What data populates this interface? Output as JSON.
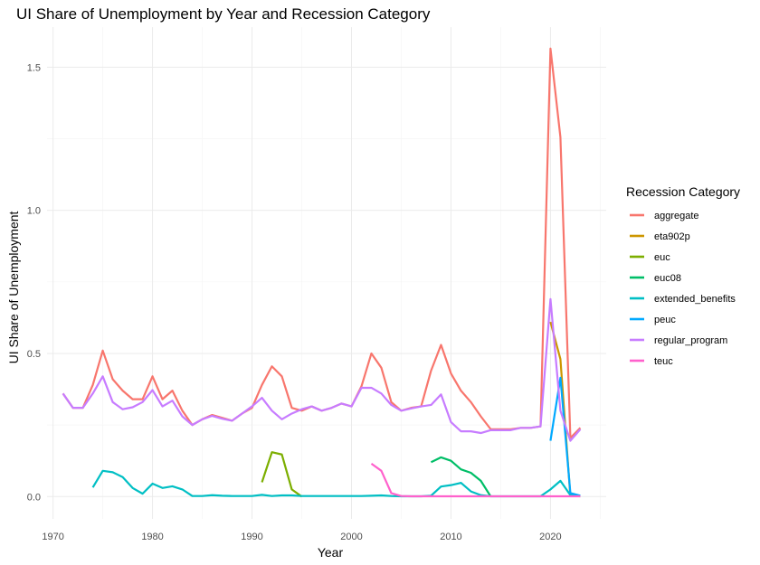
{
  "chart_data": {
    "type": "line",
    "title": "UI Share of Unemployment by Year and Recession Category",
    "xlabel": "Year",
    "ylabel": "UI Share of Unemployment",
    "xlim": [
      1969.4,
      2025.6
    ],
    "ylim": [
      -0.078,
      1.64
    ],
    "x_ticks": [
      1970,
      1980,
      1990,
      2000,
      2010,
      2020
    ],
    "x_minor_ticks": [
      1975,
      1985,
      1995,
      2005,
      2015,
      2025
    ],
    "y_ticks": [
      0.0,
      0.5,
      1.0,
      1.5
    ],
    "y_tick_labels": [
      "0.0",
      "0.5",
      "1.0",
      "1.5"
    ],
    "y_minor_ticks": [
      0.25,
      0.75,
      1.25
    ],
    "grid": true,
    "legend": {
      "title": "Recession Category",
      "position": "right"
    },
    "series": [
      {
        "name": "aggregate",
        "color": "#F8766D",
        "x": [
          1971,
          1972,
          1973,
          1974,
          1975,
          1976,
          1977,
          1978,
          1979,
          1980,
          1981,
          1982,
          1983,
          1984,
          1985,
          1986,
          1987,
          1988,
          1989,
          1990,
          1991,
          1992,
          1993,
          1994,
          1995,
          1996,
          1997,
          1998,
          1999,
          2000,
          2001,
          2002,
          2003,
          2004,
          2005,
          2006,
          2007,
          2008,
          2009,
          2010,
          2011,
          2012,
          2013,
          2014,
          2015,
          2016,
          2017,
          2018,
          2019,
          2020,
          2021,
          2022,
          2023
        ],
        "y": [
          0.36,
          0.31,
          0.31,
          0.39,
          0.51,
          0.41,
          0.37,
          0.34,
          0.34,
          0.42,
          0.34,
          0.37,
          0.3,
          0.25,
          0.27,
          0.285,
          0.275,
          0.265,
          0.29,
          0.31,
          0.39,
          0.455,
          0.42,
          0.31,
          0.3,
          0.315,
          0.3,
          0.31,
          0.325,
          0.315,
          0.385,
          0.5,
          0.45,
          0.33,
          0.3,
          0.31,
          0.315,
          0.44,
          0.53,
          0.43,
          0.37,
          0.33,
          0.28,
          0.235,
          0.235,
          0.235,
          0.24,
          0.24,
          0.245,
          1.565,
          1.255,
          0.205,
          0.24
        ]
      },
      {
        "name": "eta902p",
        "color": "#CD9600",
        "x": [
          2020,
          2021,
          2022
        ],
        "y": [
          0.61,
          0.48,
          0.0
        ]
      },
      {
        "name": "euc",
        "color": "#7CAE00",
        "x": [
          1991,
          1992,
          1993,
          1994,
          1995
        ],
        "y": [
          0.05,
          0.155,
          0.147,
          0.025,
          0.0
        ]
      },
      {
        "name": "euc08",
        "color": "#00BE67",
        "x": [
          2008,
          2009,
          2010,
          2011,
          2012,
          2013,
          2014
        ],
        "y": [
          0.12,
          0.137,
          0.125,
          0.095,
          0.083,
          0.055,
          0.0
        ]
      },
      {
        "name": "extended_benefits",
        "color": "#00BFC4",
        "x": [
          1974,
          1975,
          1976,
          1977,
          1978,
          1979,
          1980,
          1981,
          1982,
          1983,
          1984,
          1985,
          1986,
          1987,
          1988,
          1989,
          1990,
          1991,
          1992,
          1993,
          1994,
          1995,
          1996,
          1997,
          1998,
          1999,
          2000,
          2001,
          2002,
          2003,
          2004,
          2005,
          2006,
          2007,
          2008,
          2009,
          2010,
          2011,
          2012,
          2013,
          2014,
          2015,
          2016,
          2017,
          2018,
          2019,
          2020,
          2021,
          2022,
          2023
        ],
        "y": [
          0.032,
          0.09,
          0.085,
          0.068,
          0.03,
          0.01,
          0.045,
          0.03,
          0.036,
          0.025,
          0.002,
          0.002,
          0.005,
          0.003,
          0.002,
          0.002,
          0.002,
          0.006,
          0.002,
          0.004,
          0.004,
          0.002,
          0.002,
          0.002,
          0.002,
          0.002,
          0.002,
          0.002,
          0.003,
          0.004,
          0.002,
          0.001,
          0.001,
          0.001,
          0.003,
          0.035,
          0.04,
          0.048,
          0.018,
          0.005,
          0.001,
          0.001,
          0.001,
          0.001,
          0.001,
          0.001,
          0.025,
          0.055,
          0.005,
          0.001
        ]
      },
      {
        "name": "peuc",
        "color": "#00A9FF",
        "x": [
          2020,
          2021,
          2022,
          2023
        ],
        "y": [
          0.195,
          0.415,
          0.012,
          0.003
        ]
      },
      {
        "name": "regular_program",
        "color": "#C77CFF",
        "x": [
          1971,
          1972,
          1973,
          1974,
          1975,
          1976,
          1977,
          1978,
          1979,
          1980,
          1981,
          1982,
          1983,
          1984,
          1985,
          1986,
          1987,
          1988,
          1989,
          1990,
          1991,
          1992,
          1993,
          1994,
          1995,
          1996,
          1997,
          1998,
          1999,
          2000,
          2001,
          2002,
          2003,
          2004,
          2005,
          2006,
          2007,
          2008,
          2009,
          2010,
          2011,
          2012,
          2013,
          2014,
          2015,
          2016,
          2017,
          2018,
          2019,
          2020,
          2021,
          2022,
          2023
        ],
        "y": [
          0.36,
          0.31,
          0.31,
          0.36,
          0.42,
          0.33,
          0.305,
          0.312,
          0.33,
          0.372,
          0.315,
          0.335,
          0.28,
          0.25,
          0.27,
          0.282,
          0.272,
          0.265,
          0.29,
          0.315,
          0.345,
          0.3,
          0.27,
          0.29,
          0.305,
          0.315,
          0.3,
          0.31,
          0.325,
          0.315,
          0.38,
          0.38,
          0.36,
          0.32,
          0.3,
          0.308,
          0.315,
          0.32,
          0.357,
          0.26,
          0.228,
          0.228,
          0.222,
          0.232,
          0.232,
          0.232,
          0.24,
          0.24,
          0.245,
          0.69,
          0.3,
          0.195,
          0.235
        ]
      },
      {
        "name": "teuc",
        "color": "#FF61CC",
        "x": [
          2002,
          2003,
          2004,
          2005,
          2006,
          2007,
          2008,
          2009,
          2010,
          2011,
          2012,
          2013,
          2014,
          2015,
          2016,
          2017,
          2018,
          2019,
          2020,
          2021,
          2022,
          2023
        ],
        "y": [
          0.115,
          0.09,
          0.012,
          0.002,
          0.001,
          0.001,
          0.001,
          0.001,
          0.001,
          0.001,
          0.001,
          0.001,
          0.001,
          0.001,
          0.001,
          0.001,
          0.001,
          0.001,
          0.001,
          0.001,
          0.001,
          0.001
        ]
      }
    ]
  }
}
